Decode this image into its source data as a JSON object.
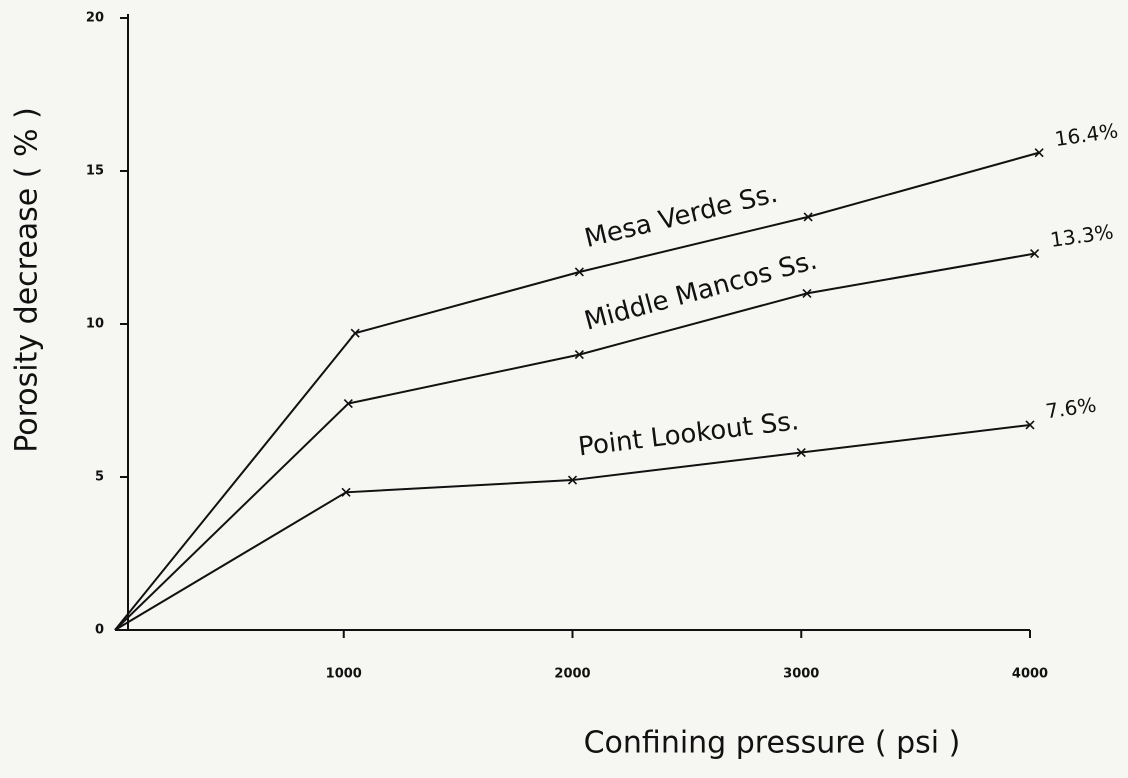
{
  "chart_data": {
    "type": "line",
    "xlabel": "Confining pressure ( psi )",
    "ylabel": "Porosity decrease ( % )",
    "xlim": [
      0,
      4000
    ],
    "ylim": [
      0,
      20
    ],
    "xticks": [
      1000,
      2000,
      3000,
      4000
    ],
    "yticks": [
      0,
      5,
      10,
      15,
      20
    ],
    "color": "#111111",
    "series": [
      {
        "name": "Mesa Verde Ss.",
        "color": "#111111",
        "x": [
          0,
          1050,
          2030,
          3030,
          4040
        ],
        "values": [
          0,
          9.7,
          11.7,
          13.5,
          15.6
        ],
        "end_label": "16.4%"
      },
      {
        "name": "Middle Mancos Ss.",
        "color": "#111111",
        "x": [
          0,
          1020,
          2030,
          3025,
          4020
        ],
        "values": [
          0,
          7.4,
          9.0,
          11.0,
          12.3
        ],
        "end_label": "13.3%"
      },
      {
        "name": "Point Lookout Ss.",
        "color": "#111111",
        "x": [
          0,
          1010,
          2000,
          3000,
          4000
        ],
        "values": [
          0,
          4.5,
          4.9,
          5.8,
          6.7
        ],
        "end_label": "7.6%"
      }
    ]
  }
}
